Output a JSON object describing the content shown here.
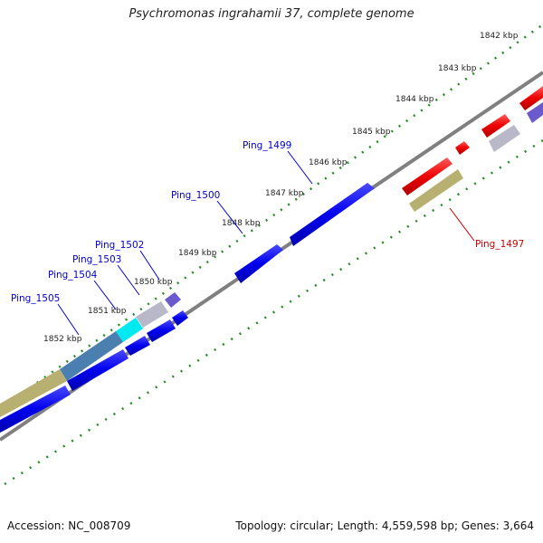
{
  "title": "Psychromonas ingrahamii 37, complete genome",
  "footer": {
    "accession": "Accession: NC_008709",
    "topology": "Topology: circular; Length: 4,559,598 bp; Genes: 3,664"
  },
  "colors": {
    "backbone": "#808080",
    "tick": "#228B22",
    "gene_blue": "#0000EE",
    "gene_red": "#EE0000",
    "gene_gray": "#B8B8C8",
    "gene_khaki": "#B8B070",
    "gene_cyan": "#00E8F0",
    "gene_purple": "#6A5ACD",
    "label_blue": "#0000CC",
    "label_red": "#CC0000"
  },
  "ticks": [
    "1842 kbp",
    "1843 kbp",
    "1844 kbp",
    "1845 kbp",
    "1846 kbp",
    "1847 kbp",
    "1848 kbp",
    "1849 kbp",
    "1850 kbp",
    "1851 kbp",
    "1852 kbp"
  ],
  "gene_labels": [
    "Ping_1499",
    "Ping_1500",
    "Ping_1502",
    "Ping_1503",
    "Ping_1504",
    "Ping_1505",
    "Ping_1497"
  ]
}
